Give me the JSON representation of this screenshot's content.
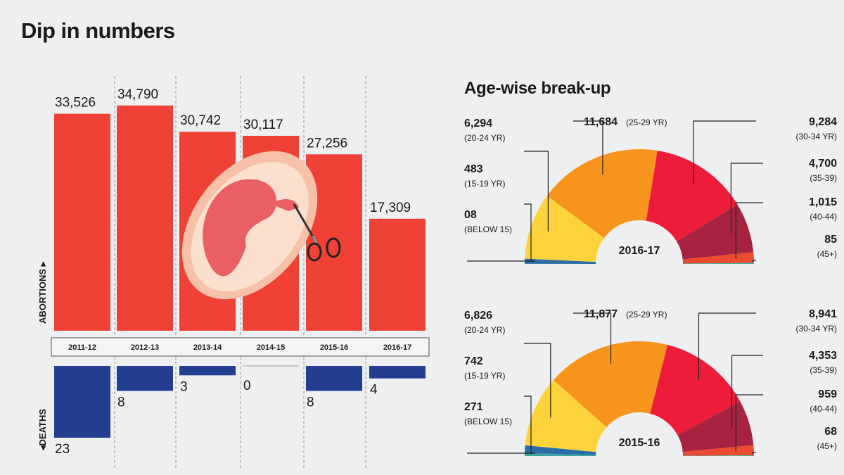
{
  "chart_data": [
    {
      "type": "bar",
      "title": "Dip in numbers",
      "categories": [
        "2011-12",
        "2012-13",
        "2013-14",
        "2014-15",
        "2015-16",
        "2016-17"
      ],
      "series": [
        {
          "name": "ABORTIONS",
          "values": [
            33526,
            34790,
            30742,
            30117,
            27256,
            17309
          ],
          "labels": [
            "33,526",
            "34,790",
            "30,742",
            "30,117",
            "27,256",
            "17,309"
          ],
          "color": "#ef4135"
        },
        {
          "name": "DEATHS",
          "values": [
            23,
            8,
            3,
            0,
            8,
            4
          ],
          "labels": [
            "23",
            "8",
            "3",
            "0",
            "8",
            "4"
          ],
          "color": "#233e91"
        }
      ],
      "grid": false
    },
    {
      "type": "pie",
      "title": "Age-wise break-up",
      "center_label": "2016-17",
      "slices": [
        {
          "value": 8,
          "label": "08",
          "category": "(BELOW 15)",
          "color": "#3aa6a0"
        },
        {
          "value": 483,
          "label": "483",
          "category": "(15-19 YR)",
          "color": "#2b6ea6"
        },
        {
          "value": 6294,
          "label": "6,294",
          "category": "(20-24 YR)",
          "color": "#fdd33c"
        },
        {
          "value": 11684,
          "label": "11,684",
          "category": "(25-29 YR)",
          "color": "#f7941d"
        },
        {
          "value": 9284,
          "label": "9,284",
          "category": "(30-34 YR)",
          "color": "#ec1c3a"
        },
        {
          "value": 4700,
          "label": "4,700",
          "category": "(35-39)",
          "color": "#a8233f"
        },
        {
          "value": 1015,
          "label": "1,015",
          "category": "(40-44)",
          "color": "#ea4a2f"
        },
        {
          "value": 85,
          "label": "85",
          "category": "(45+)",
          "color": "#3fb0a0"
        }
      ]
    },
    {
      "type": "pie",
      "center_label": "2015-16",
      "slices": [
        {
          "value": 271,
          "label": "271",
          "category": "(BELOW 15)",
          "color": "#3aa6a0"
        },
        {
          "value": 742,
          "label": "742",
          "category": "(15-19 YR)",
          "color": "#2b6ea6"
        },
        {
          "value": 6826,
          "label": "6,826",
          "category": "(20-24 YR)",
          "color": "#fdd33c"
        },
        {
          "value": 11877,
          "label": "11,877",
          "category": "(25-29 YR)",
          "color": "#f7941d"
        },
        {
          "value": 8941,
          "label": "8,941",
          "category": "(30-34 YR)",
          "color": "#ec1c3a"
        },
        {
          "value": 4353,
          "label": "4,353",
          "category": "(35-39)",
          "color": "#a8233f"
        },
        {
          "value": 959,
          "label": "959",
          "category": "(40-44)",
          "color": "#ea4a2f"
        },
        {
          "value": 68,
          "label": "68",
          "category": "(45+)",
          "color": "#3fb0a0"
        }
      ]
    }
  ]
}
